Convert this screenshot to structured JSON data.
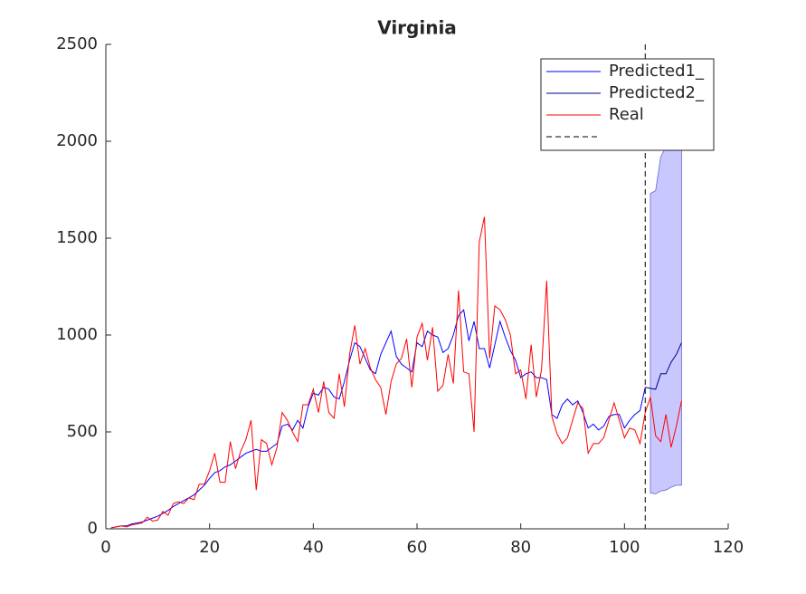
{
  "chart_data": {
    "type": "line",
    "title": "Virginia",
    "xlim": [
      0,
      120
    ],
    "xticks": [
      0,
      20,
      40,
      60,
      80,
      100,
      120
    ],
    "ylim": [
      0,
      2500
    ],
    "yticks": [
      0,
      500,
      1000,
      1500,
      2000,
      2500
    ],
    "grid": false,
    "legend": "northeast",
    "vline": 104,
    "vline_color": "#000000",
    "band": {
      "color": "#c8c8ff",
      "x": [
        105,
        106,
        107,
        108,
        109,
        110,
        111
      ],
      "lower": [
        185,
        180,
        195,
        200,
        215,
        225,
        225
      ],
      "upper": [
        1730,
        1745,
        1920,
        1970,
        2000,
        2000,
        2000
      ]
    },
    "series": [
      {
        "name": "Predicted1_",
        "color": "#0000ff",
        "x": [
          1,
          2,
          3,
          4,
          5,
          6,
          7,
          8,
          9,
          10,
          11,
          12,
          13,
          14,
          15,
          16,
          17,
          18,
          19,
          20,
          21,
          22,
          23,
          24,
          25,
          26,
          27,
          28,
          29,
          30,
          31,
          32,
          33,
          34,
          35,
          36,
          37,
          38,
          39,
          40,
          41,
          42,
          43,
          44,
          45,
          46,
          47,
          48,
          49,
          50,
          51,
          52,
          53,
          54,
          55,
          56,
          57,
          58,
          59,
          60,
          61,
          62,
          63,
          64,
          65,
          66,
          67,
          68,
          69,
          70,
          71,
          72,
          73,
          74,
          75,
          76,
          77,
          78,
          79,
          80,
          81,
          82,
          83,
          84,
          85,
          86,
          87,
          88,
          89,
          90,
          91,
          92,
          93,
          94,
          95,
          96,
          97,
          98,
          99,
          100,
          101,
          102,
          103,
          104
        ],
        "values": [
          5,
          10,
          15,
          15,
          25,
          30,
          35,
          45,
          55,
          65,
          80,
          95,
          115,
          130,
          145,
          160,
          175,
          200,
          225,
          260,
          290,
          300,
          320,
          330,
          350,
          370,
          390,
          400,
          410,
          400,
          400,
          420,
          440,
          530,
          540,
          510,
          560,
          520,
          630,
          700,
          690,
          730,
          720,
          680,
          670,
          760,
          870,
          960,
          940,
          880,
          820,
          800,
          900,
          960,
          1020,
          890,
          850,
          830,
          810,
          960,
          940,
          1020,
          1000,
          990,
          910,
          930,
          1000,
          1100,
          1130,
          970,
          1070,
          930,
          930,
          830,
          950,
          1070,
          990,
          920,
          870,
          780,
          800,
          810,
          780,
          780,
          770,
          590,
          570,
          640,
          670,
          640,
          660,
          600,
          520,
          540,
          510,
          530,
          580,
          590,
          590,
          520,
          560,
          590,
          610,
          730
        ]
      },
      {
        "name": "Predicted2_",
        "color": "#00008b",
        "x": [
          104,
          105,
          106,
          107,
          108,
          109,
          110,
          111
        ],
        "values": [
          730,
          725,
          720,
          800,
          800,
          860,
          900,
          960
        ]
      },
      {
        "name": "Real",
        "color": "#ff0000",
        "x": [
          1,
          2,
          3,
          4,
          5,
          6,
          7,
          8,
          9,
          10,
          11,
          12,
          13,
          14,
          15,
          16,
          17,
          18,
          19,
          20,
          21,
          22,
          23,
          24,
          25,
          26,
          27,
          28,
          29,
          30,
          31,
          32,
          33,
          34,
          35,
          36,
          37,
          38,
          39,
          40,
          41,
          42,
          43,
          44,
          45,
          46,
          47,
          48,
          49,
          50,
          51,
          52,
          53,
          54,
          55,
          56,
          57,
          58,
          59,
          60,
          61,
          62,
          63,
          64,
          65,
          66,
          67,
          68,
          69,
          70,
          71,
          72,
          73,
          74,
          75,
          76,
          77,
          78,
          79,
          80,
          81,
          82,
          83,
          84,
          85,
          86,
          87,
          88,
          89,
          90,
          91,
          92,
          93,
          94,
          95,
          96,
          97,
          98,
          99,
          100,
          101,
          102,
          103,
          104,
          105,
          106,
          107,
          108,
          109,
          110,
          111
        ],
        "values": [
          5,
          10,
          15,
          10,
          20,
          25,
          30,
          60,
          40,
          45,
          90,
          70,
          130,
          140,
          130,
          160,
          150,
          230,
          230,
          300,
          390,
          240,
          240,
          450,
          310,
          400,
          460,
          560,
          200,
          460,
          440,
          330,
          420,
          600,
          560,
          500,
          450,
          640,
          640,
          720,
          600,
          760,
          600,
          570,
          800,
          630,
          900,
          1050,
          850,
          930,
          830,
          770,
          730,
          590,
          760,
          850,
          880,
          980,
          730,
          990,
          1060,
          870,
          1040,
          710,
          740,
          900,
          750,
          1230,
          810,
          800,
          500,
          1480,
          1610,
          880,
          1150,
          1130,
          1080,
          1000,
          800,
          820,
          670,
          950,
          680,
          820,
          1280,
          580,
          490,
          440,
          470,
          560,
          650,
          620,
          390,
          440,
          440,
          470,
          560,
          650,
          560,
          470,
          520,
          510,
          440,
          600,
          680,
          480,
          450,
          590,
          420,
          530,
          660
        ]
      }
    ]
  }
}
